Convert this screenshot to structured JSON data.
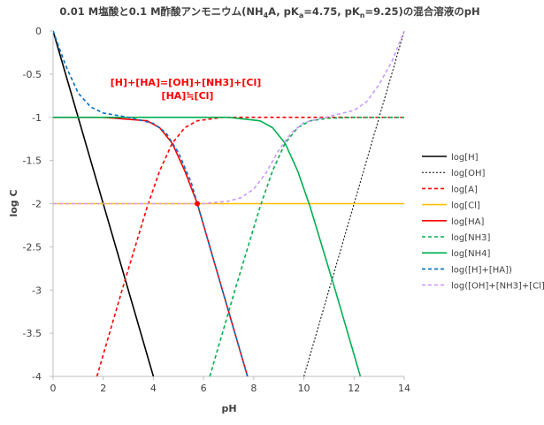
{
  "chart_data": {
    "type": "line",
    "title": {
      "part1": "0.01 M塩酸と0.1 M酢酸アンモニウム(NH",
      "sub1": "4",
      "part2": "A, pK",
      "sub2": "a",
      "part3": "=4.75, pK",
      "sub3": "n",
      "part4": "=9.25)の混合溶液のpH"
    },
    "xlabel": "pH",
    "ylabel": "log C",
    "xlim": [
      0,
      14
    ],
    "ylim": [
      -4,
      0
    ],
    "xticks": [
      0,
      2,
      4,
      6,
      8,
      10,
      12,
      14
    ],
    "yticks": [
      0,
      -0.5,
      -1,
      -1.5,
      -2,
      -2.5,
      -3,
      -3.5,
      -4
    ],
    "grid": false,
    "legend_position": "right",
    "annotation": {
      "line1": "[H]+[HA]=[OH]+[NH3]+[Cl]",
      "line2": "[HA]≒[Cl]",
      "color": "#ff0000",
      "point": {
        "x": 5.75,
        "y": -2.0
      }
    },
    "series": [
      {
        "name": "log[H]",
        "color": "#000000",
        "dash": "solid",
        "x": [
          0,
          4
        ],
        "y": [
          0,
          -4
        ]
      },
      {
        "name": "log[OH]",
        "color": "#000000",
        "dash": "dotted",
        "x": [
          10,
          14
        ],
        "y": [
          -4,
          0
        ]
      },
      {
        "name": "log[A]",
        "color": "#ff0000",
        "dash": "dashed",
        "x": [
          1.75,
          2.75,
          3.75,
          4.25,
          4.75,
          5.25,
          5.75,
          6.75,
          8,
          10,
          14
        ],
        "y": [
          -4,
          -3,
          -2.04,
          -1.62,
          -1.3,
          -1.12,
          -1.04,
          -1.0,
          -1.0,
          -1.0,
          -1.0
        ]
      },
      {
        "name": "log[Cl]",
        "color": "#ffc000",
        "dash": "solid",
        "x": [
          0,
          14
        ],
        "y": [
          -2,
          -2
        ]
      },
      {
        "name": "log[HA]",
        "color": "#ff0000",
        "dash": "solid",
        "x": [
          0,
          2,
          3.75,
          4.25,
          4.75,
          5.25,
          5.75,
          6.75,
          7.75
        ],
        "y": [
          -1.0,
          -1.0,
          -1.04,
          -1.12,
          -1.3,
          -1.62,
          -2.0,
          -3.0,
          -4.0
        ]
      },
      {
        "name": "log[NH3]",
        "color": "#00b050",
        "dash": "dashed",
        "x": [
          6.25,
          7.25,
          8.25,
          8.75,
          9.25,
          9.75,
          10.25,
          11,
          12,
          14
        ],
        "y": [
          -4,
          -3,
          -2.04,
          -1.62,
          -1.3,
          -1.12,
          -1.04,
          -1.01,
          -1.0,
          -1.0
        ]
      },
      {
        "name": "log[NH4]",
        "color": "#00b050",
        "dash": "solid",
        "x": [
          0,
          7,
          8.25,
          8.75,
          9.25,
          9.75,
          10.25,
          11.25,
          12.25
        ],
        "y": [
          -1.0,
          -1.0,
          -1.04,
          -1.12,
          -1.3,
          -1.62,
          -2.04,
          -3.0,
          -4.0
        ]
      },
      {
        "name": "log([H]+[HA])",
        "color": "#0070c0",
        "dash": "dashed",
        "x": [
          0,
          0.5,
          1,
          1.5,
          2,
          3,
          4,
          4.5,
          5,
          5.5,
          5.75,
          6.25,
          6.75,
          7.25,
          7.75
        ],
        "y": [
          0,
          -0.4,
          -0.72,
          -0.88,
          -0.95,
          -1.0,
          -1.07,
          -1.18,
          -1.41,
          -1.75,
          -2.0,
          -2.5,
          -3.0,
          -3.5,
          -4.0
        ]
      },
      {
        "name": "log([OH]+[NH3]+[Cl])",
        "color": "#cc99ff",
        "dash": "dashed",
        "x": [
          0,
          5,
          6,
          7,
          7.5,
          8,
          8.5,
          9,
          9.5,
          10,
          11,
          12,
          12.5,
          13,
          13.5,
          14
        ],
        "y": [
          -2.0,
          -2.0,
          -2.0,
          -1.97,
          -1.93,
          -1.83,
          -1.64,
          -1.38,
          -1.18,
          -1.06,
          -0.99,
          -0.92,
          -0.82,
          -0.62,
          -0.36,
          0.0
        ]
      }
    ]
  }
}
